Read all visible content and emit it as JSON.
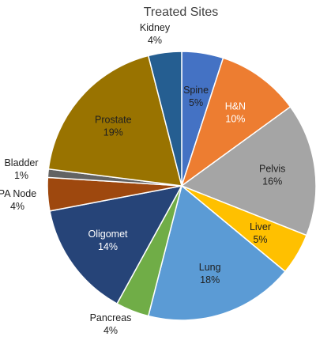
{
  "chart_data": {
    "type": "pie",
    "title": "Treated Sites",
    "slices": [
      {
        "label": "Spine",
        "value": 5,
        "display": "5%",
        "color": "#4472C4",
        "text_color": "#1f1f1f",
        "inside": true
      },
      {
        "label": "H&N",
        "value": 10,
        "display": "10%",
        "color": "#ED7D31",
        "text_color": "#ffffff",
        "inside": true
      },
      {
        "label": "Pelvis",
        "value": 16,
        "display": "16%",
        "color": "#A5A5A5",
        "text_color": "#1f1f1f",
        "inside": true
      },
      {
        "label": "Liver",
        "value": 5,
        "display": "5%",
        "color": "#FFC000",
        "text_color": "#1f1f1f",
        "inside": true
      },
      {
        "label": "Lung",
        "value": 18,
        "display": "18%",
        "color": "#5B9BD5",
        "text_color": "#1f1f1f",
        "inside": true
      },
      {
        "label": "Pancreas",
        "value": 4,
        "display": "4%",
        "color": "#70AD47",
        "text_color": "#1f1f1f",
        "inside": false
      },
      {
        "label": "Oligomet",
        "value": 14,
        "display": "14%",
        "color": "#264478",
        "text_color": "#ffffff",
        "inside": true
      },
      {
        "label": "PA Node",
        "value": 4,
        "display": "4%",
        "color": "#9E480E",
        "text_color": "#1f1f1f",
        "inside": false
      },
      {
        "label": "Bladder",
        "value": 1,
        "display": "1%",
        "color": "#636363",
        "text_color": "#1f1f1f",
        "inside": false
      },
      {
        "label": "Prostate",
        "value": 19,
        "display": "19%",
        "color": "#997300",
        "text_color": "#1f1f1f",
        "inside": true
      },
      {
        "label": "Kidney",
        "value": 4,
        "display": "4%",
        "color": "#255E91",
        "text_color": "#1f1f1f",
        "inside": false
      }
    ],
    "legend": "none"
  }
}
